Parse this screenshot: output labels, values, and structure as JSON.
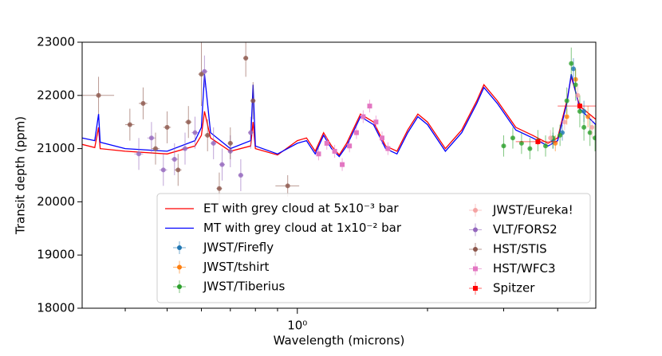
{
  "chart_data": {
    "type": "line",
    "x_label": "Wavelength (microns)",
    "y_label": "Transit depth (ppm)",
    "xscale": "log",
    "xlim": [
      0.318,
      4.9
    ],
    "ylim": [
      18000,
      23000
    ],
    "xticks": [
      {
        "value": 1,
        "label": "10⁰"
      }
    ],
    "xminorticks": [
      0.4,
      0.5,
      0.6,
      0.7,
      0.8,
      0.9,
      2,
      3,
      4
    ],
    "yticks": [
      18000,
      19000,
      20000,
      21000,
      22000,
      23000
    ],
    "series": [
      {
        "name": "ET with grey cloud at 5x10⁻³ bar",
        "color": "#ff0000",
        "marker": "none",
        "x": [
          0.318,
          0.34,
          0.347,
          0.35,
          0.4,
          0.5,
          0.58,
          0.6,
          0.61,
          0.63,
          0.7,
          0.78,
          0.79,
          0.8,
          0.9,
          1.0,
          1.05,
          1.1,
          1.15,
          1.2,
          1.25,
          1.3,
          1.4,
          1.5,
          1.6,
          1.7,
          1.8,
          1.9,
          2.0,
          2.2,
          2.4,
          2.6,
          2.7,
          2.9,
          3.2,
          3.5,
          3.8,
          4.0,
          4.2,
          4.3,
          4.5,
          4.9
        ],
        "values": [
          21080,
          21020,
          21400,
          21000,
          20950,
          20900,
          21050,
          21250,
          21700,
          21200,
          20950,
          21050,
          21500,
          21000,
          20880,
          21150,
          21200,
          20950,
          21300,
          21050,
          20880,
          21100,
          21650,
          21500,
          21050,
          20950,
          21350,
          21650,
          21500,
          21000,
          21350,
          21900,
          22200,
          21900,
          21400,
          21250,
          21100,
          21200,
          21900,
          22350,
          21800,
          21550
        ]
      },
      {
        "name": "MT with grey cloud at 1x10⁻² bar",
        "color": "#0000ff",
        "marker": "none",
        "x": [
          0.318,
          0.34,
          0.347,
          0.35,
          0.4,
          0.5,
          0.58,
          0.6,
          0.61,
          0.63,
          0.7,
          0.78,
          0.79,
          0.8,
          0.9,
          1.0,
          1.05,
          1.1,
          1.15,
          1.2,
          1.25,
          1.3,
          1.4,
          1.5,
          1.6,
          1.7,
          1.8,
          1.9,
          2.0,
          2.2,
          2.4,
          2.6,
          2.7,
          2.9,
          3.2,
          3.5,
          3.8,
          4.0,
          4.2,
          4.3,
          4.5,
          4.9
        ],
        "values": [
          21200,
          21150,
          21650,
          21120,
          21000,
          20950,
          21150,
          21400,
          22400,
          21300,
          21000,
          21150,
          22200,
          21050,
          20900,
          21100,
          21150,
          20900,
          21250,
          21000,
          20850,
          21050,
          21600,
          21450,
          21000,
          20900,
          21300,
          21600,
          21450,
          20950,
          21300,
          21850,
          22150,
          21850,
          21350,
          21200,
          21050,
          21150,
          21850,
          22400,
          21750,
          21450
        ]
      },
      {
        "name": "JWST/Firefly",
        "color": "#1f77b4",
        "marker": "o",
        "x": [
          3.9,
          4.1,
          4.35,
          4.6
        ],
        "values": [
          21150,
          21300,
          22500,
          21700
        ],
        "xerr": [
          0.02,
          0.02,
          0.02,
          0.02
        ],
        "yerr": [
          150,
          150,
          200,
          200
        ]
      },
      {
        "name": "JWST/tshirt",
        "color": "#ff7f0e",
        "marker": "o",
        "x": [
          3.95,
          4.2,
          4.4,
          4.7
        ],
        "values": [
          21100,
          21600,
          22300,
          21600
        ],
        "xerr": [
          0.02,
          0.02,
          0.02,
          0.02
        ],
        "yerr": [
          150,
          150,
          200,
          200
        ]
      },
      {
        "name": "JWST/Tiberius",
        "color": "#2ca02c",
        "marker": "o",
        "x": [
          3.0,
          3.15,
          3.3,
          3.45,
          3.6,
          3.75,
          3.9,
          4.05,
          4.2,
          4.3,
          4.4,
          4.5,
          4.6,
          4.75,
          4.88
        ],
        "values": [
          21050,
          21200,
          21100,
          21000,
          21150,
          21050,
          21200,
          21250,
          21900,
          22600,
          22200,
          21700,
          21400,
          21300,
          21200
        ],
        "xerr": [
          0.02,
          0.02,
          0.02,
          0.02,
          0.02,
          0.02,
          0.02,
          0.02,
          0.02,
          0.02,
          0.02,
          0.02,
          0.02,
          0.02,
          0.02
        ],
        "yerr": [
          200,
          200,
          200,
          200,
          200,
          200,
          200,
          200,
          250,
          300,
          300,
          300,
          250,
          250,
          250
        ]
      },
      {
        "name": "JWST/Eureka!",
        "color": "#f4a3a3",
        "marker": "o",
        "x": [
          3.85,
          4.15,
          4.45,
          4.8
        ],
        "values": [
          21200,
          21500,
          22000,
          21400
        ],
        "xerr": [
          0.02,
          0.02,
          0.02,
          0.02
        ],
        "yerr": [
          150,
          150,
          200,
          200
        ]
      },
      {
        "name": "VLT/FORS2",
        "color": "#9467bd",
        "marker": "o",
        "x": [
          0.43,
          0.46,
          0.49,
          0.52,
          0.55,
          0.58,
          0.61,
          0.64,
          0.67,
          0.7,
          0.74,
          0.78
        ],
        "values": [
          20900,
          21200,
          20600,
          20800,
          21000,
          21300,
          22450,
          21100,
          20700,
          20950,
          20500,
          21300
        ],
        "xerr": [
          0.01,
          0.01,
          0.01,
          0.01,
          0.01,
          0.01,
          0.01,
          0.01,
          0.01,
          0.01,
          0.01,
          0.01
        ],
        "yerr": [
          300,
          300,
          300,
          300,
          300,
          300,
          300,
          300,
          300,
          300,
          300,
          300
        ]
      },
      {
        "name": "HST/STIS",
        "color": "#8c564b",
        "marker": "o",
        "x": [
          0.347,
          0.41,
          0.44,
          0.47,
          0.5,
          0.53,
          0.56,
          0.6,
          0.62,
          0.66,
          0.7,
          0.76,
          0.79,
          0.95
        ],
        "values": [
          22000,
          21450,
          21850,
          21000,
          21400,
          20600,
          21500,
          22400,
          21250,
          20250,
          21100,
          22700,
          21900,
          20300
        ],
        "xerr": [
          0.03,
          0.01,
          0.01,
          0.01,
          0.01,
          0.01,
          0.01,
          0.01,
          0.01,
          0.01,
          0.01,
          0.01,
          0.01,
          0.06
        ],
        "yerr": [
          350,
          300,
          300,
          300,
          300,
          300,
          300,
          600,
          300,
          300,
          300,
          350,
          350,
          200
        ]
      },
      {
        "name": "HST/WFC3",
        "color": "#e377c2",
        "marker": "s",
        "x": [
          1.12,
          1.17,
          1.22,
          1.27,
          1.32,
          1.37,
          1.42,
          1.47,
          1.52,
          1.57,
          1.62
        ],
        "values": [
          20900,
          21100,
          20950,
          20700,
          21050,
          21300,
          21600,
          21800,
          21500,
          21200,
          21000
        ],
        "xerr": [
          0.01,
          0.01,
          0.01,
          0.01,
          0.01,
          0.01,
          0.01,
          0.01,
          0.01,
          0.01,
          0.01
        ],
        "yerr": [
          120,
          120,
          120,
          120,
          120,
          120,
          120,
          120,
          120,
          120,
          120
        ]
      },
      {
        "name": "Spitzer",
        "color": "#ff0000",
        "marker": "s",
        "x": [
          3.6,
          4.5
        ],
        "values": [
          21130,
          21800
        ],
        "xerr": [
          0.4,
          0.5
        ],
        "yerr": [
          60,
          60
        ]
      }
    ]
  }
}
